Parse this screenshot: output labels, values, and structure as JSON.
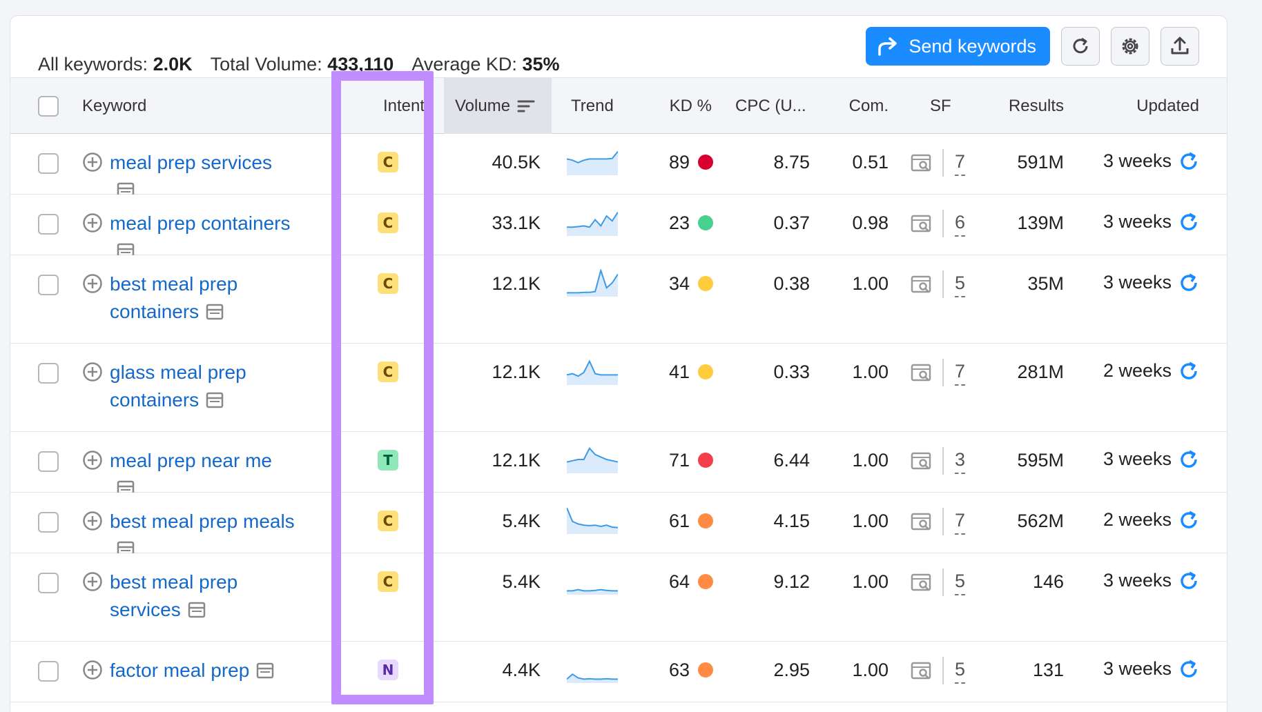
{
  "summary": {
    "all_keywords_label": "All keywords:",
    "all_keywords_value": "2.0K",
    "total_volume_label": "Total Volume:",
    "total_volume_value": "433,110",
    "avg_kd_label": "Average KD:",
    "avg_kd_value": "35%"
  },
  "actions": {
    "send_label": "Send keywords",
    "refresh_icon": "refresh-icon",
    "settings_icon": "gear-icon",
    "export_icon": "export-icon"
  },
  "columns": {
    "keyword": "Keyword",
    "intent": "Intent",
    "volume": "Volume",
    "trend": "Trend",
    "kd": "KD %",
    "cpc": "CPC (U...",
    "com": "Com.",
    "sf": "SF",
    "results": "Results",
    "updated": "Updated"
  },
  "colors": {
    "accent": "#1a8cff",
    "link": "#1468c9",
    "highlight": "#c18cff",
    "intent_c_bg": "#fde07a",
    "intent_t_bg": "#8ee8b8",
    "intent_n_bg": "#e8d9ff",
    "kd_red": "#d8002f",
    "kd_green": "#48d08e",
    "kd_yellow": "#ffcc3d",
    "kd_orange": "#ff8c42",
    "kd_red_light": "#f23f4b"
  },
  "rows": [
    {
      "keyword": "meal prep services",
      "intent": "C",
      "volume": "40.5K",
      "kd": "89",
      "kd_color": "#d8002f",
      "cpc": "8.75",
      "com": "0.51",
      "sf": "7",
      "results": "591M",
      "updated": "3 weeks",
      "trend": [
        0.6,
        0.55,
        0.45,
        0.55,
        0.6,
        0.6,
        0.6,
        0.6,
        0.62,
        0.9
      ]
    },
    {
      "keyword": "meal prep containers",
      "intent": "C",
      "volume": "33.1K",
      "kd": "23",
      "kd_color": "#48d08e",
      "cpc": "0.37",
      "com": "0.98",
      "sf": "6",
      "results": "139M",
      "updated": "3 weeks",
      "trend": [
        0.3,
        0.3,
        0.32,
        0.35,
        0.3,
        0.6,
        0.35,
        0.75,
        0.55,
        0.9
      ]
    },
    {
      "keyword": "best meal prep containers",
      "intent": "C",
      "volume": "12.1K",
      "kd": "34",
      "kd_color": "#ffcc3d",
      "cpc": "0.38",
      "com": "1.00",
      "sf": "5",
      "results": "35M",
      "updated": "3 weeks",
      "trend": [
        0.1,
        0.1,
        0.1,
        0.12,
        0.12,
        0.15,
        1.0,
        0.3,
        0.5,
        0.85
      ]
    },
    {
      "keyword": "glass meal prep containers",
      "intent": "C",
      "volume": "12.1K",
      "kd": "41",
      "kd_color": "#ffcc3d",
      "cpc": "0.33",
      "com": "1.00",
      "sf": "7",
      "results": "281M",
      "updated": "2 weeks",
      "trend": [
        0.35,
        0.4,
        0.3,
        0.45,
        0.9,
        0.4,
        0.35,
        0.35,
        0.35,
        0.35
      ]
    },
    {
      "keyword": "meal prep near me",
      "intent": "T",
      "volume": "12.1K",
      "kd": "71",
      "kd_color": "#f23f4b",
      "cpc": "6.44",
      "com": "1.00",
      "sf": "3",
      "results": "595M",
      "updated": "3 weeks",
      "trend": [
        0.4,
        0.45,
        0.5,
        0.5,
        0.95,
        0.7,
        0.6,
        0.5,
        0.45,
        0.4
      ]
    },
    {
      "keyword": "best meal prep meals",
      "intent": "C",
      "volume": "5.4K",
      "kd": "61",
      "kd_color": "#ff8c42",
      "cpc": "4.15",
      "com": "1.00",
      "sf": "7",
      "results": "562M",
      "updated": "2 weeks",
      "trend": [
        1.0,
        0.45,
        0.35,
        0.3,
        0.28,
        0.3,
        0.25,
        0.3,
        0.22,
        0.2
      ]
    },
    {
      "keyword": "best meal prep services",
      "intent": "C",
      "volume": "5.4K",
      "kd": "64",
      "kd_color": "#ff8c42",
      "cpc": "9.12",
      "com": "1.00",
      "sf": "5",
      "results": "146",
      "updated": "3 weeks",
      "trend": [
        0.1,
        0.1,
        0.15,
        0.1,
        0.1,
        0.12,
        0.15,
        0.12,
        0.1,
        0.1
      ]
    },
    {
      "keyword": "factor meal prep",
      "intent": "N",
      "volume": "4.4K",
      "kd": "63",
      "kd_color": "#ff8c42",
      "cpc": "2.95",
      "com": "1.00",
      "sf": "5",
      "results": "131",
      "updated": "3 weeks",
      "trend": [
        0.1,
        0.3,
        0.15,
        0.1,
        0.12,
        0.1,
        0.1,
        0.12,
        0.1,
        0.1
      ]
    }
  ]
}
